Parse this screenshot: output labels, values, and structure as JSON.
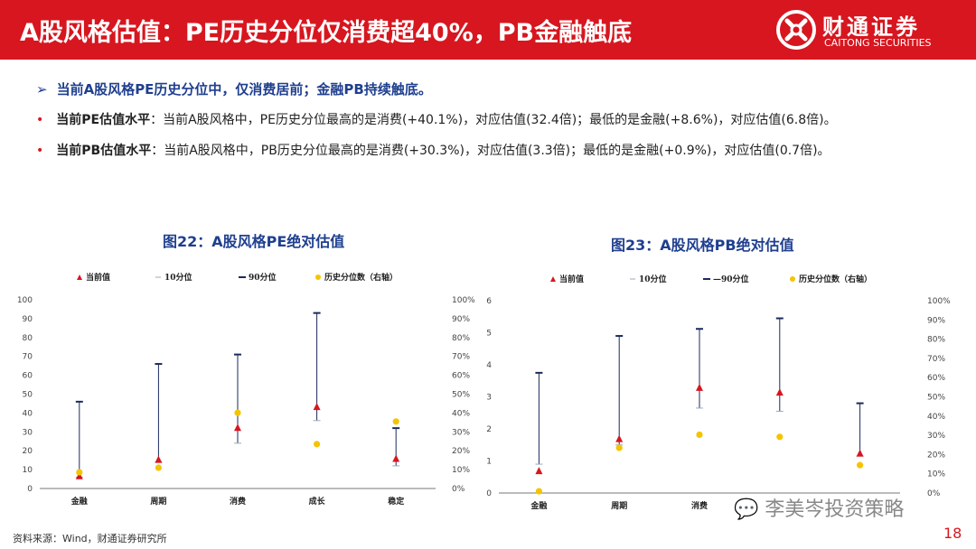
{
  "header": {
    "title": "A股风格估值：PE历史分位仅消费超40%，PB金融触底",
    "logo_cn": "财通证券",
    "logo_en": "CAITONG SECURITIES"
  },
  "bullets": {
    "main": "当前A股风格PE历史分位中，仅消费居前；金融PB持续触底。",
    "pe_label": "当前PE估值水平",
    "pe_text": "：当前A股风格中，PE历史分位最高的是消费(+40.1%)，对应估值(32.4倍)；最低的是金融(+8.6%)，对应估值(6.8倍)。",
    "pb_label": "当前PB估值水平",
    "pb_text": "：当前A股风格中，PB历史分位最高的是消费(+30.3%)，对应估值(3.3倍)；最低的是金融(+0.9%)，对应估值(0.7倍)。"
  },
  "footer": {
    "source": "资料来源：Wind，财通证券研究所",
    "watermark": "李美岑投资策略",
    "page": "18"
  },
  "colors": {
    "red": "#d7161f",
    "blue": "#1f3f8f",
    "navy": "#1b2a5e",
    "gold": "#f5c400"
  },
  "chart_data": [
    {
      "type": "scatter",
      "title": "图22：A股风格PE绝对估值",
      "legend": [
        "当前值",
        "10分位",
        "90分位",
        "历史分位数（右轴）"
      ],
      "categories": [
        "金融",
        "周期",
        "消费",
        "成长",
        "稳定"
      ],
      "current": [
        6.8,
        15.5,
        32.4,
        43.5,
        16
      ],
      "p10": [
        6,
        14,
        24,
        36,
        12
      ],
      "p90": [
        46,
        66,
        71,
        93,
        32
      ],
      "percentile": [
        8.6,
        11,
        40.1,
        23.5,
        35.5
      ],
      "ylim": [
        0,
        100
      ],
      "yticks": [
        "0",
        "10",
        "20",
        "30",
        "40",
        "50",
        "60",
        "70",
        "80",
        "90",
        "100"
      ],
      "y2lim": [
        0,
        100
      ],
      "y2ticks": [
        "0%",
        "10%",
        "20%",
        "30%",
        "40%",
        "50%",
        "60%",
        "70%",
        "80%",
        "90%",
        "100%"
      ]
    },
    {
      "type": "scatter",
      "title": "图23：A股风格PB绝对估值",
      "legend": [
        "当前值",
        "10分位",
        "—90分位",
        "历史分位数（右轴）"
      ],
      "categories": [
        "金融",
        "周期",
        "消费",
        "",
        ""
      ],
      "current": [
        0.7,
        1.7,
        3.3,
        3.15,
        1.25
      ],
      "p10": [
        0.9,
        1.5,
        2.65,
        2.55,
        1.15
      ],
      "p90": [
        3.75,
        4.9,
        5.12,
        5.45,
        2.8
      ],
      "percentile": [
        0.9,
        23.5,
        30.3,
        29.2,
        14.5
      ],
      "ylim": [
        0,
        6
      ],
      "yticks": [
        "0",
        "1",
        "2",
        "3",
        "4",
        "5",
        "6"
      ],
      "y2lim": [
        0,
        100
      ],
      "y2ticks": [
        "0%",
        "10%",
        "20%",
        "30%",
        "40%",
        "50%",
        "60%",
        "70%",
        "80%",
        "90%",
        "100%"
      ]
    }
  ]
}
